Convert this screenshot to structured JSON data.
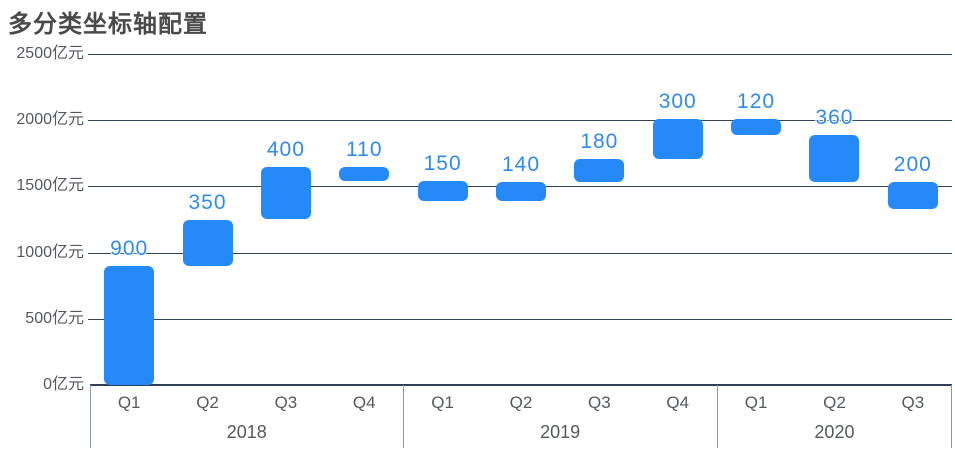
{
  "title": "多分类坐标轴配置",
  "chart_data": {
    "type": "bar",
    "subtype": "waterfall",
    "title": "多分类坐标轴配置",
    "unit": "亿元",
    "grid": true,
    "ylim": [
      0,
      2500
    ],
    "y_ticks": [
      0,
      500,
      1000,
      1500,
      2000,
      2500
    ],
    "y_tick_labels": [
      "0亿元",
      "500亿元",
      "1000亿元",
      "1500亿元",
      "2000亿元",
      "2500亿元"
    ],
    "x_groups": [
      {
        "label": "2018",
        "quarters": [
          "Q1",
          "Q2",
          "Q3",
          "Q4"
        ]
      },
      {
        "label": "2019",
        "quarters": [
          "Q1",
          "Q2",
          "Q3",
          "Q4"
        ]
      },
      {
        "label": "2020",
        "quarters": [
          "Q1",
          "Q2",
          "Q3"
        ]
      }
    ],
    "bars": [
      {
        "group": "2018",
        "category": "Q1",
        "label": "900",
        "value": 900,
        "low": 0,
        "high": 900,
        "direction": "up"
      },
      {
        "group": "2018",
        "category": "Q2",
        "label": "350",
        "value": 350,
        "low": 900,
        "high": 1250,
        "direction": "up"
      },
      {
        "group": "2018",
        "category": "Q3",
        "label": "400",
        "value": 400,
        "low": 1250,
        "high": 1650,
        "direction": "up"
      },
      {
        "group": "2018",
        "category": "Q4",
        "label": "110",
        "value": 110,
        "low": 1540,
        "high": 1650,
        "direction": "down"
      },
      {
        "group": "2019",
        "category": "Q1",
        "label": "150",
        "value": 150,
        "low": 1390,
        "high": 1540,
        "direction": "down"
      },
      {
        "group": "2019",
        "category": "Q2",
        "label": "140",
        "value": 140,
        "low": 1390,
        "high": 1530,
        "direction": "up"
      },
      {
        "group": "2019",
        "category": "Q3",
        "label": "180",
        "value": 180,
        "low": 1530,
        "high": 1710,
        "direction": "up"
      },
      {
        "group": "2019",
        "category": "Q4",
        "label": "300",
        "value": 300,
        "low": 1710,
        "high": 2010,
        "direction": "up"
      },
      {
        "group": "2020",
        "category": "Q1",
        "label": "120",
        "value": 120,
        "low": 1890,
        "high": 2010,
        "direction": "down"
      },
      {
        "group": "2020",
        "category": "Q2",
        "label": "360",
        "value": 360,
        "low": 1530,
        "high": 1890,
        "direction": "down"
      },
      {
        "group": "2020",
        "category": "Q3",
        "label": "200",
        "value": 200,
        "low": 1330,
        "high": 1530,
        "direction": "down"
      }
    ],
    "colors": {
      "bar": "#2589F7",
      "bar_label": "#2F8BF2",
      "grid": "#33455C",
      "axis": "#2E3F55",
      "separator": "#8F99A4",
      "axis_text": "#55595F",
      "title_text": "#4A4A4A"
    }
  }
}
